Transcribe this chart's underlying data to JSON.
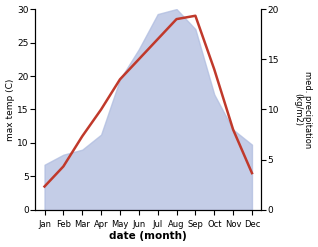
{
  "months": [
    "Jan",
    "Feb",
    "Mar",
    "Apr",
    "May",
    "Jun",
    "Jul",
    "Aug",
    "Sep",
    "Oct",
    "Nov",
    "Dec"
  ],
  "temperature": [
    3.5,
    6.5,
    11.0,
    15.0,
    19.5,
    22.5,
    25.5,
    28.5,
    29.0,
    21.0,
    12.0,
    5.5
  ],
  "precipitation": [
    4.5,
    5.5,
    6.0,
    7.5,
    13.0,
    16.0,
    19.5,
    20.0,
    18.0,
    11.5,
    8.0,
    6.5
  ],
  "temp_color": "#c0392b",
  "precip_color": "#b0bde0",
  "temp_ylim": [
    0,
    30
  ],
  "precip_ylim": [
    0,
    20
  ],
  "temp_yticks": [
    0,
    5,
    10,
    15,
    20,
    25,
    30
  ],
  "precip_yticks": [
    0,
    5,
    10,
    15,
    20
  ],
  "xlabel": "date (month)",
  "ylabel_left": "max temp (C)",
  "ylabel_right": "med. precipitation\n(kg/m2)",
  "background_color": "#ffffff",
  "line_width": 1.8
}
